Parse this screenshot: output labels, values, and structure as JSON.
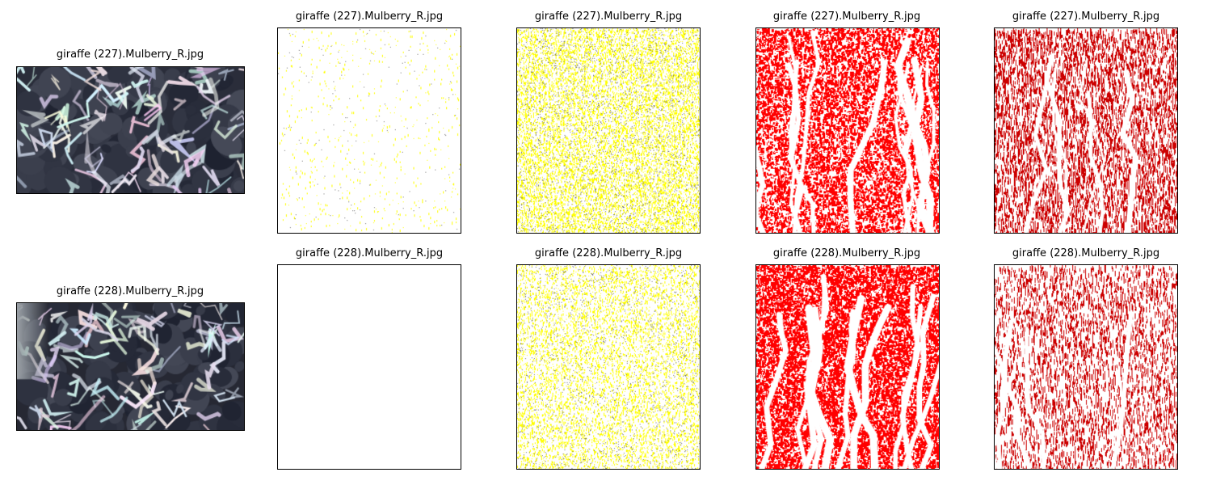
{
  "rows": [
    {
      "source_title": "giraffe (227).Mulberry_R.jpg",
      "mask_titles": [
        "giraffe (227).Mulberry_R.jpg",
        "giraffe (227).Mulberry_R.jpg",
        "giraffe (227).Mulberry_R.jpg",
        "giraffe (227).Mulberry_R.jpg"
      ],
      "mask_colors": [
        "#ffff00",
        "#ffff00",
        "#ff0000",
        "#cc0000"
      ],
      "mask_density": [
        0.01,
        0.18,
        0.55,
        0.55
      ]
    },
    {
      "source_title": "giraffe (228).Mulberry_R.jpg",
      "mask_titles": [
        "giraffe (228).Mulberry_R.jpg",
        "giraffe (228).Mulberry_R.jpg",
        "giraffe (228).Mulberry_R.jpg",
        "giraffe (228).Mulberry_R.jpg"
      ],
      "mask_colors": [
        "#ffff00",
        "#ffff00",
        "#ff0000",
        "#cc0000"
      ],
      "mask_density": [
        0.0,
        0.12,
        0.75,
        0.35
      ]
    }
  ]
}
